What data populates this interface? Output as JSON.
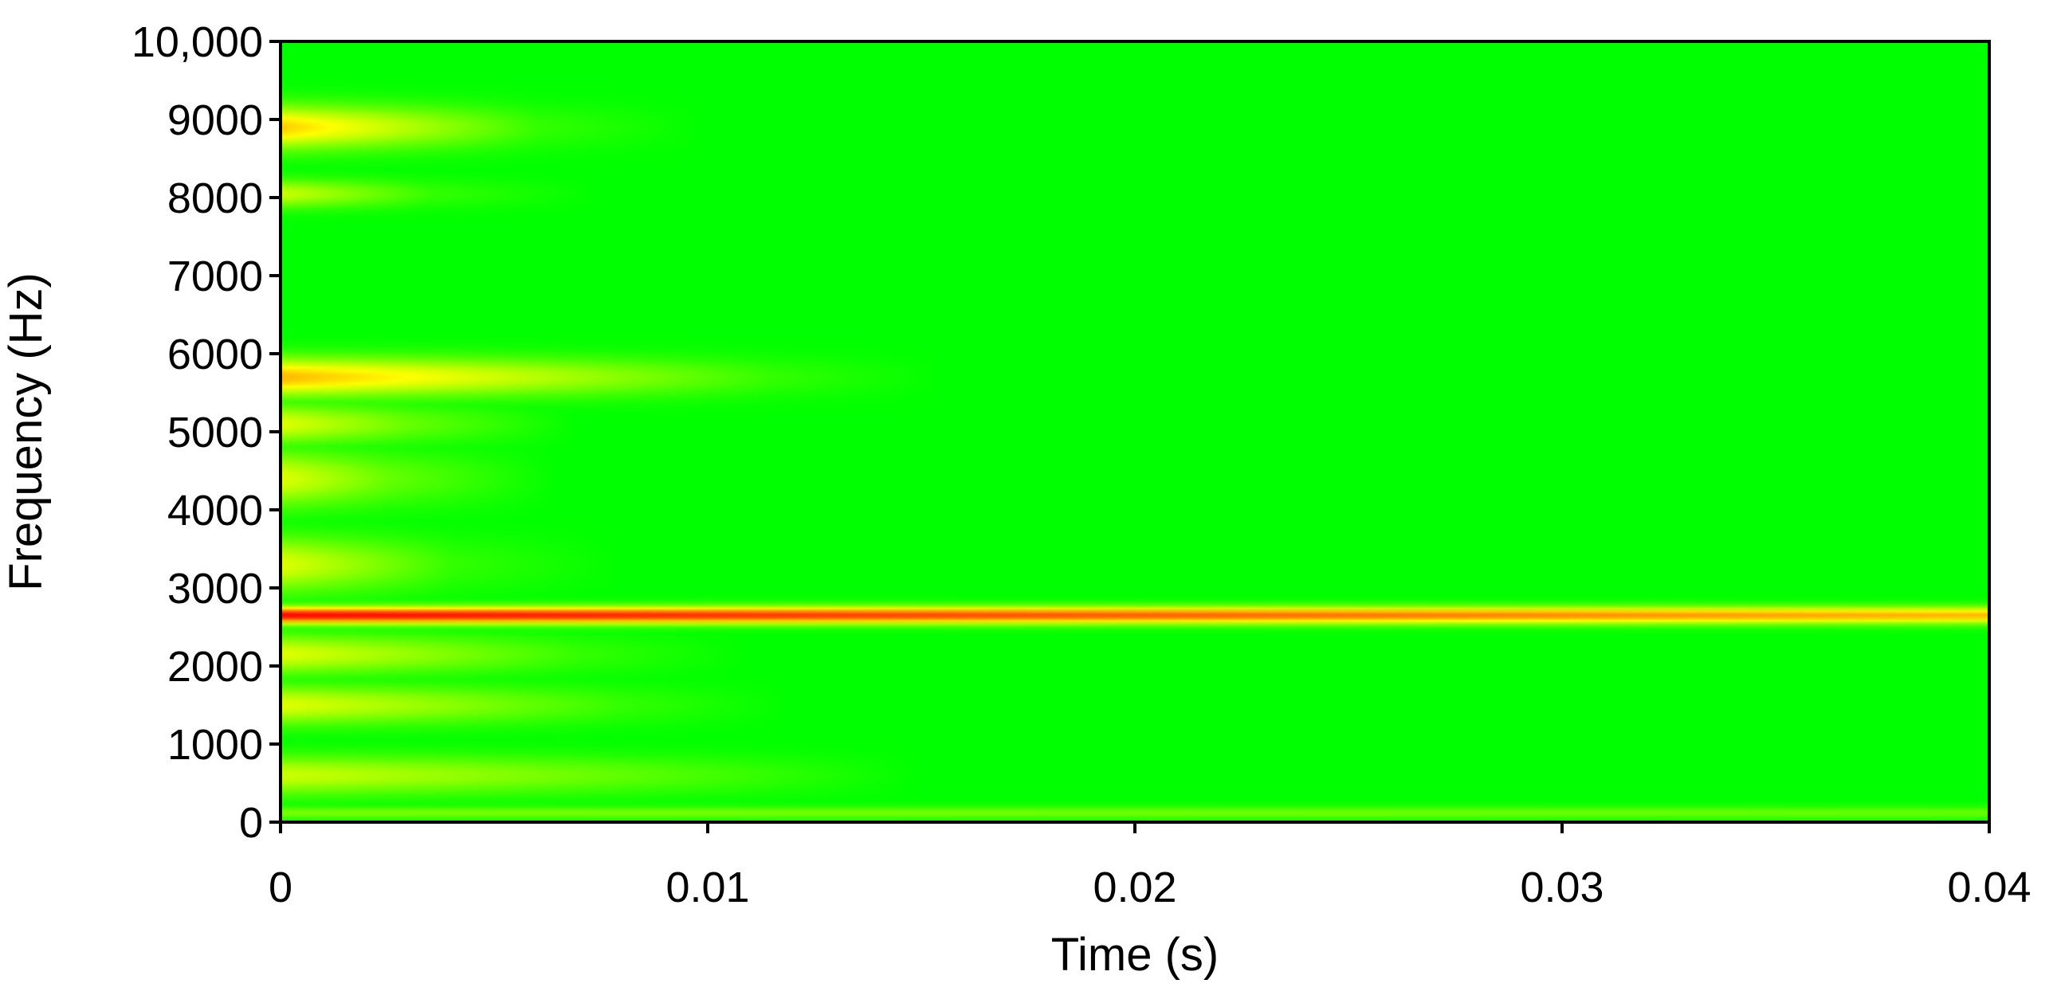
{
  "chart_data": {
    "type": "heatmap",
    "title": "",
    "xlabel": "Time (s)",
    "ylabel": "Frequency (Hz)",
    "xlim": [
      0,
      0.04
    ],
    "ylim": [
      0,
      10000
    ],
    "x_ticks": [
      {
        "value": 0,
        "label": "0"
      },
      {
        "value": 0.01,
        "label": "0.01"
      },
      {
        "value": 0.02,
        "label": "0.02"
      },
      {
        "value": 0.03,
        "label": "0.03"
      },
      {
        "value": 0.04,
        "label": "0.04"
      }
    ],
    "y_ticks": [
      {
        "value": 0,
        "label": "0"
      },
      {
        "value": 1000,
        "label": "1000"
      },
      {
        "value": 2000,
        "label": "2000"
      },
      {
        "value": 3000,
        "label": "3000"
      },
      {
        "value": 4000,
        "label": "4000"
      },
      {
        "value": 5000,
        "label": "5000"
      },
      {
        "value": 6000,
        "label": "6000"
      },
      {
        "value": 7000,
        "label": "7000"
      },
      {
        "value": 8000,
        "label": "8000"
      },
      {
        "value": 9000,
        "label": "9000"
      },
      {
        "value": 10000,
        "label": "10,000"
      }
    ],
    "colormap": [
      "#0000c8",
      "#00e6ff",
      "#00ff00",
      "#ffff00",
      "#ff0000"
    ],
    "background_color": "#00ff20",
    "grid": false,
    "legend": "none",
    "bands": [
      {
        "freq": 2650,
        "half_width": 110,
        "t_start": 0,
        "t_end": 0.04,
        "intensity_start": 1.0,
        "intensity_end": 0.82
      },
      {
        "freq": 5700,
        "half_width": 250,
        "t_start": 0,
        "t_end": 0.0115,
        "intensity_start": 0.82,
        "intensity_end": 0.55
      },
      {
        "freq": 8900,
        "half_width": 280,
        "t_start": 0,
        "t_end": 0.006,
        "intensity_start": 0.8,
        "intensity_end": 0.55
      },
      {
        "freq": 8050,
        "half_width": 180,
        "t_start": 0,
        "t_end": 0.0035,
        "intensity_start": 0.7,
        "intensity_end": 0.55
      },
      {
        "freq": 1500,
        "half_width": 250,
        "t_start": 0,
        "t_end": 0.008,
        "intensity_start": 0.72,
        "intensity_end": 0.55
      },
      {
        "freq": 600,
        "half_width": 250,
        "t_start": 0,
        "t_end": 0.015,
        "intensity_start": 0.7,
        "intensity_end": 0.5
      },
      {
        "freq": 4400,
        "half_width": 350,
        "t_start": 0,
        "t_end": 0.0025,
        "intensity_start": 0.72,
        "intensity_end": 0.6
      },
      {
        "freq": 5100,
        "half_width": 250,
        "t_start": 0,
        "t_end": 0.003,
        "intensity_start": 0.72,
        "intensity_end": 0.6
      },
      {
        "freq": 3300,
        "half_width": 350,
        "t_start": 0,
        "t_end": 0.004,
        "intensity_start": 0.72,
        "intensity_end": 0.55
      },
      {
        "freq": 2150,
        "half_width": 250,
        "t_start": 0,
        "t_end": 0.007,
        "intensity_start": 0.72,
        "intensity_end": 0.55
      },
      {
        "freq": 120,
        "half_width": 80,
        "t_start": 0,
        "t_end": 0.04,
        "intensity_start": 0.62,
        "intensity_end": 0.6
      }
    ],
    "cool_regions": [
      {
        "t_start": 0.0,
        "t_end": 0.04,
        "f_start": 6300,
        "f_end": 10000,
        "t_onset": 0.006,
        "level": 0.28
      },
      {
        "t_start": 0.0,
        "t_end": 0.04,
        "f_start": 3000,
        "f_end": 5400,
        "t_onset": 0.0055,
        "level": 0.32
      },
      {
        "t_start": 0.0,
        "t_end": 0.04,
        "f_start": 700,
        "f_end": 2450,
        "t_onset": 0.011,
        "level": 0.36
      }
    ]
  }
}
